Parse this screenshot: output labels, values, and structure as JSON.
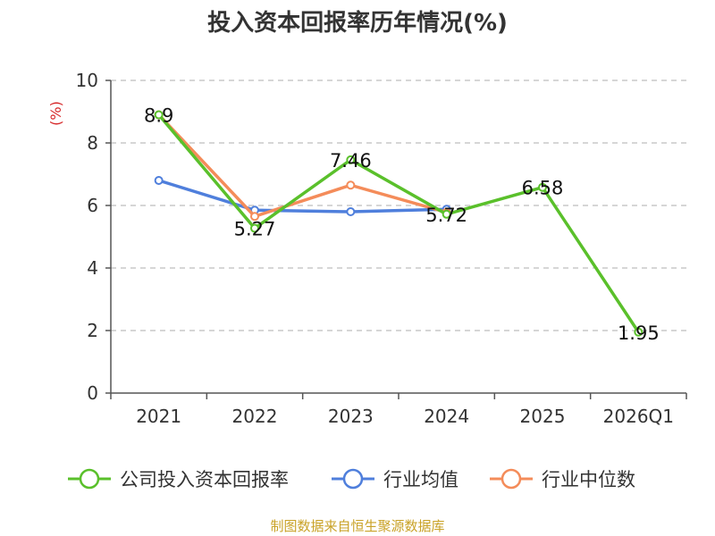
{
  "chart_data": {
    "type": "line",
    "title": "投入资本回报率历年情况(%)",
    "ylabel": "(%)",
    "xlabel": "",
    "categories": [
      "2021",
      "2022",
      "2023",
      "2024",
      "2025",
      "2026Q1"
    ],
    "ylim": [
      0,
      10
    ],
    "yticks": [
      0,
      2,
      4,
      6,
      8,
      10
    ],
    "grid": true,
    "legend_position": "bottom",
    "series": [
      {
        "name": "公司投入资本回报率",
        "color": "#5ac02b",
        "values": [
          8.9,
          5.27,
          7.46,
          5.72,
          6.58,
          1.95
        ],
        "labels": [
          "8.9",
          "5.27",
          "7.46",
          "5.72",
          "6.58",
          "1.95"
        ]
      },
      {
        "name": "行业均值",
        "color": "#4f7fdc",
        "values": [
          6.8,
          5.85,
          5.8,
          5.88,
          null,
          null
        ]
      },
      {
        "name": "行业中位数",
        "color": "#f48c5a",
        "values": [
          8.9,
          5.65,
          6.65,
          5.78,
          null,
          null
        ]
      }
    ],
    "source": "制图数据来自恒生聚源数据库"
  }
}
